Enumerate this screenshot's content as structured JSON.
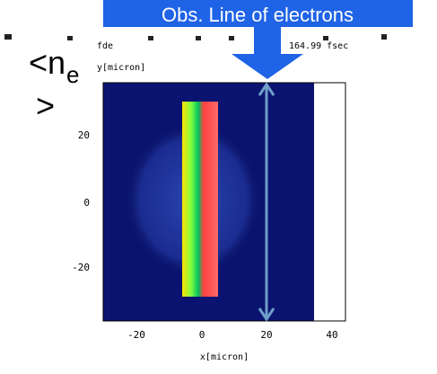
{
  "banner": {
    "text": "Obs. Line of electrons"
  },
  "label": {
    "lt": "<n",
    "sub": "e",
    "gt": ">"
  },
  "plot": {
    "name": "fde",
    "time": "164.99 fsec",
    "ylabel": "y[micron]",
    "xlabel": "x[micron]",
    "yticks": [
      "20",
      "0",
      "-20"
    ],
    "xticks": [
      "-20",
      "0",
      "20",
      "40"
    ]
  }
}
